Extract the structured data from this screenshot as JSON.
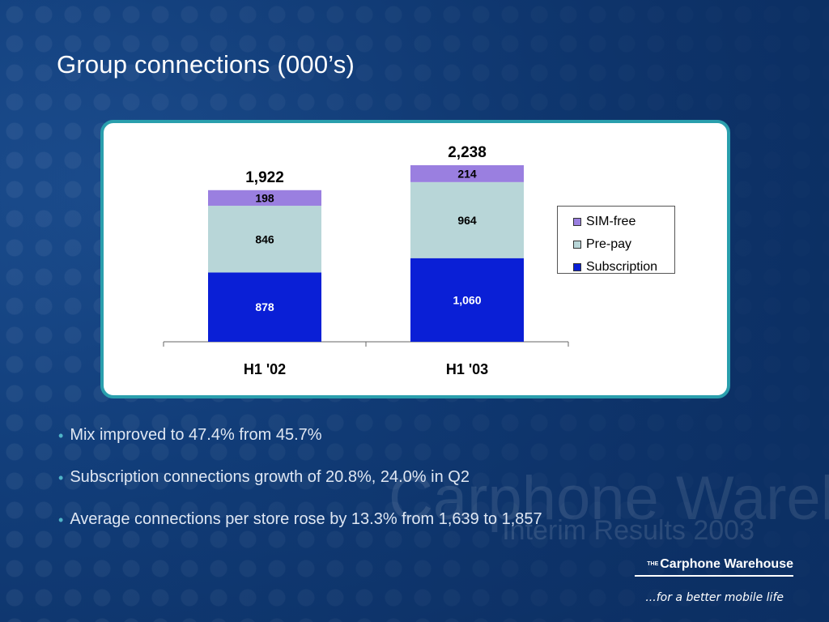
{
  "slide": {
    "title": "Group connections (000’s)",
    "bullets": [
      "Mix improved to 47.4% from 45.7%",
      "Subscription connections growth of 20.8%, 24.0% in Q2",
      "Average connections per store rose by 13.3% from 1,639 to 1,857"
    ],
    "watermark": "Carphone Warehouse",
    "watermark_sub": "Interim Results 2003",
    "logo_prefix": "THE",
    "logo_text": "Carphone Warehouse",
    "tagline": "...for a better mobile life"
  },
  "chart_data": {
    "type": "bar",
    "stacked": true,
    "title": "",
    "xlabel": "",
    "ylabel": "",
    "categories": [
      "H1 '02",
      "H1 '03"
    ],
    "series": [
      {
        "name": "Subscription",
        "values": [
          878,
          1060
        ],
        "labels": [
          "878",
          "1,060"
        ],
        "color": "#0a1fd6",
        "label_color": "#ffffff"
      },
      {
        "name": "Pre-pay",
        "values": [
          846,
          964
        ],
        "labels": [
          "846",
          "964"
        ],
        "color": "#b8d6d8",
        "label_color": "#000000"
      },
      {
        "name": "SIM-free",
        "values": [
          198,
          214
        ],
        "labels": [
          "198",
          "214"
        ],
        "color": "#9a7fe0",
        "label_color": "#000000"
      }
    ],
    "totals": [
      1922,
      2238
    ],
    "total_labels": [
      "1,922",
      "2,238"
    ],
    "ylim": [
      0,
      2238
    ],
    "grid": false,
    "legend": "right"
  },
  "colors": {
    "panel_border": "#2a9fad",
    "background": "#123f7c",
    "bullet": "#4fb3c7"
  }
}
